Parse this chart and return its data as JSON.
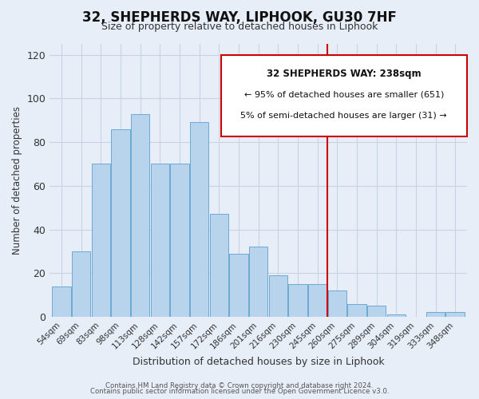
{
  "title": "32, SHEPHERDS WAY, LIPHOOK, GU30 7HF",
  "subtitle": "Size of property relative to detached houses in Liphook",
  "xlabel": "Distribution of detached houses by size in Liphook",
  "ylabel": "Number of detached properties",
  "bar_labels": [
    "54sqm",
    "69sqm",
    "83sqm",
    "98sqm",
    "113sqm",
    "128sqm",
    "142sqm",
    "157sqm",
    "172sqm",
    "186sqm",
    "201sqm",
    "216sqm",
    "230sqm",
    "245sqm",
    "260sqm",
    "275sqm",
    "289sqm",
    "304sqm",
    "319sqm",
    "333sqm",
    "348sqm"
  ],
  "bar_values": [
    14,
    30,
    70,
    86,
    93,
    70,
    70,
    89,
    47,
    29,
    32,
    19,
    15,
    15,
    12,
    6,
    5,
    1,
    0,
    2,
    2
  ],
  "bar_color": "#b8d4ec",
  "bar_edge_color": "#6aaad4",
  "ylim": [
    0,
    125
  ],
  "yticks": [
    0,
    20,
    40,
    60,
    80,
    100,
    120
  ],
  "vline_x": 13.5,
  "vline_color": "#cc0000",
  "annotation_title": "32 SHEPHERDS WAY: 238sqm",
  "annotation_line1": "← 95% of detached houses are smaller (651)",
  "annotation_line2": "5% of semi-detached houses are larger (31) →",
  "footer1": "Contains HM Land Registry data © Crown copyright and database right 2024.",
  "footer2": "Contains public sector information licensed under the Open Government Licence v3.0.",
  "background_color": "#e8eef8",
  "grid_color": "#c8d4e4"
}
